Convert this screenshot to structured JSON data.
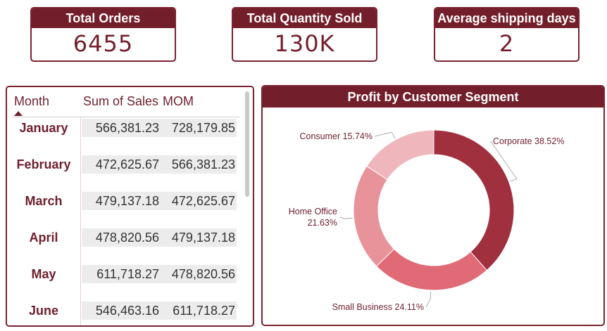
{
  "kpis": {
    "total_orders": {
      "label": "Total Orders",
      "value": "6455"
    },
    "total_quantity": {
      "label": "Total Quantity Sold",
      "value": "130K"
    },
    "avg_shipping": {
      "label": "Average shipping days",
      "value": "2"
    }
  },
  "table": {
    "headers": {
      "month": "Month",
      "sales": "Sum of Sales",
      "mom": "MOM"
    },
    "rows": [
      {
        "month": "January",
        "sales": "566,381.23",
        "mom": "728,179.85"
      },
      {
        "month": "February",
        "sales": "472,625.67",
        "mom": "566,381.23"
      },
      {
        "month": "March",
        "sales": "479,137.18",
        "mom": "472,625.67"
      },
      {
        "month": "April",
        "sales": "478,820.56",
        "mom": "479,137.18"
      },
      {
        "month": "May",
        "sales": "611,718.27",
        "mom": "478,820.56"
      },
      {
        "month": "June",
        "sales": "546,463.16",
        "mom": "611,718.27"
      }
    ]
  },
  "colors": {
    "brand": "#731f2b"
  },
  "chart_data": {
    "type": "pie",
    "title": "Profit by Customer Segment",
    "donut": true,
    "slices": [
      {
        "label": "Corporate",
        "pct_label": "38.52%",
        "value": 38.52,
        "color": "#a0303e"
      },
      {
        "label": "Small Business",
        "pct_label": "24.11%",
        "value": 24.11,
        "color": "#e06a75"
      },
      {
        "label": "Home Office",
        "pct_label": "21.63%",
        "value": 21.63,
        "color": "#e8929a"
      },
      {
        "label": "Consumer",
        "pct_label": "15.74%",
        "value": 15.74,
        "color": "#efb6bb"
      }
    ]
  }
}
